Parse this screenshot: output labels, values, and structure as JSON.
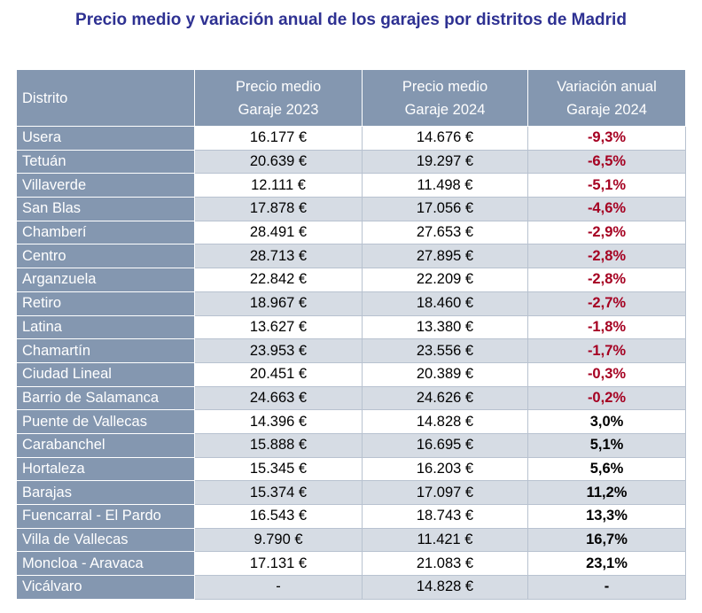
{
  "title": "Precio medio y variación anual de los garajes por distritos de Madrid",
  "table": {
    "header": [
      [
        "Distrito"
      ],
      [
        "Precio medio",
        "Garaje 2023"
      ],
      [
        "Precio medio",
        "Garaje 2024"
      ],
      [
        "Variación anual",
        "Garaje 2024"
      ]
    ],
    "rows": [
      [
        "Usera",
        "16.177 €",
        "14.676 €",
        "-9,3%"
      ],
      [
        "Tetuán",
        "20.639 €",
        "19.297 €",
        "-6,5%"
      ],
      [
        "Villaverde",
        "12.111 €",
        "11.498 €",
        "-5,1%"
      ],
      [
        "San Blas",
        "17.878 €",
        "17.056 €",
        "-4,6%"
      ],
      [
        "Chamberí",
        "28.491 €",
        "27.653 €",
        "-2,9%"
      ],
      [
        "Centro",
        "28.713 €",
        "27.895 €",
        "-2,8%"
      ],
      [
        "Arganzuela",
        "22.842 €",
        "22.209 €",
        "-2,8%"
      ],
      [
        "Retiro",
        "18.967 €",
        "18.460 €",
        "-2,7%"
      ],
      [
        "Latina",
        "13.627 €",
        "13.380 €",
        "-1,8%"
      ],
      [
        "Chamartín",
        "23.953 €",
        "23.556 €",
        "-1,7%"
      ],
      [
        "Ciudad Lineal",
        "20.451 €",
        "20.389 €",
        "-0,3%"
      ],
      [
        "Barrio de Salamanca",
        "24.663 €",
        "24.626 €",
        "-0,2%"
      ],
      [
        "Puente de Vallecas",
        "14.396 €",
        "14.828 €",
        "3,0%"
      ],
      [
        "Carabanchel",
        "15.888 €",
        "16.695 €",
        "5,1%"
      ],
      [
        "Hortaleza",
        "15.345 €",
        "16.203 €",
        "5,6%"
      ],
      [
        "Barajas",
        "15.374 €",
        "17.097 €",
        "11,2%"
      ],
      [
        "Fuencarral - El Pardo",
        "16.543 €",
        "18.743 €",
        "13,3%"
      ],
      [
        "Villa de Vallecas",
        "9.790 €",
        "11.421 €",
        "16,7%"
      ],
      [
        "Moncloa - Aravaca",
        "17.131 €",
        "21.083 €",
        "23,1%"
      ],
      [
        "Vicálvaro",
        "-",
        "14.828 €",
        "-"
      ]
    ]
  }
}
